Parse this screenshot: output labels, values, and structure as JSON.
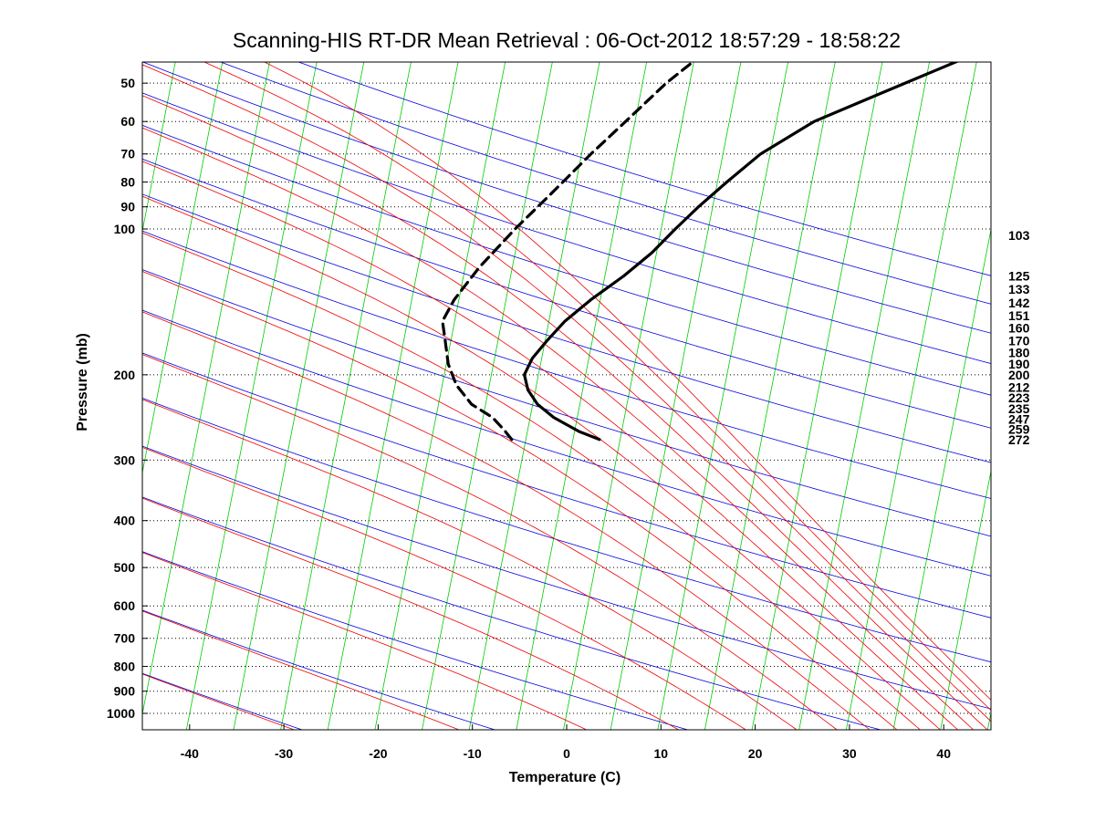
{
  "chart_data": {
    "type": "line",
    "title": "Scanning-HIS RT-DR Mean Retrieval : 06-Oct-2012 18:57:29 - 18:58:22",
    "xlabel": "Temperature (C)",
    "ylabel": "Pressure (mb)",
    "xlim": [
      -45,
      45
    ],
    "ylim": [
      1100,
      45
    ],
    "x_ticks": [
      -40,
      -30,
      -20,
      -10,
      0,
      10,
      20,
      30,
      40
    ],
    "y_ticks": [
      50,
      60,
      70,
      80,
      90,
      100,
      200,
      300,
      400,
      500,
      600,
      700,
      800,
      900,
      1000
    ],
    "y_grid": "dotted",
    "skew_dx_per_decade": 103.6,
    "right_labels": [
      {
        "text": "103",
        "pressure": 103
      },
      {
        "text": "125",
        "pressure": 125
      },
      {
        "text": "133",
        "pressure": 133
      },
      {
        "text": "142",
        "pressure": 142
      },
      {
        "text": "151",
        "pressure": 151
      },
      {
        "text": "160",
        "pressure": 160
      },
      {
        "text": "170",
        "pressure": 170
      },
      {
        "text": "180",
        "pressure": 180
      },
      {
        "text": "190",
        "pressure": 190
      },
      {
        "text": "200",
        "pressure": 200
      },
      {
        "text": "212",
        "pressure": 212
      },
      {
        "text": "223",
        "pressure": 223
      },
      {
        "text": "235",
        "pressure": 235
      },
      {
        "text": "247",
        "pressure": 247
      },
      {
        "text": "259",
        "pressure": 259
      },
      {
        "text": "272",
        "pressure": 272
      }
    ],
    "background_lines": {
      "isotherms": {
        "color": "#00cc00",
        "temps": [
          -100,
          -95,
          -90,
          -85,
          -80,
          -75,
          -70,
          -65,
          -60,
          -55,
          -50,
          -45,
          -40,
          -35,
          -30,
          -25,
          -20,
          -15,
          -10,
          -5,
          0,
          5,
          10,
          15,
          20,
          25,
          30,
          35,
          40,
          45,
          50
        ]
      },
      "dry_adiabats": {
        "color": "#0000dd",
        "theta_k": [
          220,
          240,
          260,
          280,
          300,
          320,
          340,
          360,
          380,
          400,
          420,
          440,
          460,
          480,
          500,
          520,
          540,
          560
        ]
      },
      "moist_adiabats": {
        "color": "#ee0000",
        "theta_k": [
          220,
          240,
          260,
          280,
          300,
          320,
          340,
          360,
          380,
          400,
          420,
          440,
          460,
          480,
          500,
          520,
          540,
          560
        ]
      }
    },
    "series": [
      {
        "name": "Temperature",
        "style": "solid",
        "color": "#000000",
        "points": [
          {
            "p": 272,
            "t": -2.2
          },
          {
            "p": 262,
            "t": -4.5
          },
          {
            "p": 245,
            "t": -7.5
          },
          {
            "p": 230,
            "t": -9.5
          },
          {
            "p": 215,
            "t": -10.8
          },
          {
            "p": 200,
            "t": -11.5
          },
          {
            "p": 185,
            "t": -11.0
          },
          {
            "p": 170,
            "t": -9.8
          },
          {
            "p": 155,
            "t": -8.3
          },
          {
            "p": 140,
            "t": -6.0
          },
          {
            "p": 125,
            "t": -3.0
          },
          {
            "p": 112,
            "t": -0.5
          },
          {
            "p": 100,
            "t": 1.5
          },
          {
            "p": 90,
            "t": 3.5
          },
          {
            "p": 80,
            "t": 6.0
          },
          {
            "p": 70,
            "t": 9.0
          },
          {
            "p": 60,
            "t": 14.0
          },
          {
            "p": 53,
            "t": 20.0
          },
          {
            "p": 45,
            "t": 28.0
          }
        ]
      },
      {
        "name": "Dewpoint",
        "style": "dashed",
        "color": "#000000",
        "points": [
          {
            "p": 272,
            "t": -11.5
          },
          {
            "p": 260,
            "t": -12.5
          },
          {
            "p": 245,
            "t": -14.0
          },
          {
            "p": 230,
            "t": -16.5
          },
          {
            "p": 210,
            "t": -18.5
          },
          {
            "p": 190,
            "t": -19.8
          },
          {
            "p": 170,
            "t": -20.6
          },
          {
            "p": 155,
            "t": -21.3
          },
          {
            "p": 140,
            "t": -20.5
          },
          {
            "p": 120,
            "t": -18.5
          },
          {
            "p": 100,
            "t": -15.5
          },
          {
            "p": 85,
            "t": -12.5
          },
          {
            "p": 70,
            "t": -9.0
          },
          {
            "p": 60,
            "t": -6.0
          },
          {
            "p": 50,
            "t": -2.5
          },
          {
            "p": 45,
            "t": 0.0
          }
        ]
      }
    ]
  }
}
